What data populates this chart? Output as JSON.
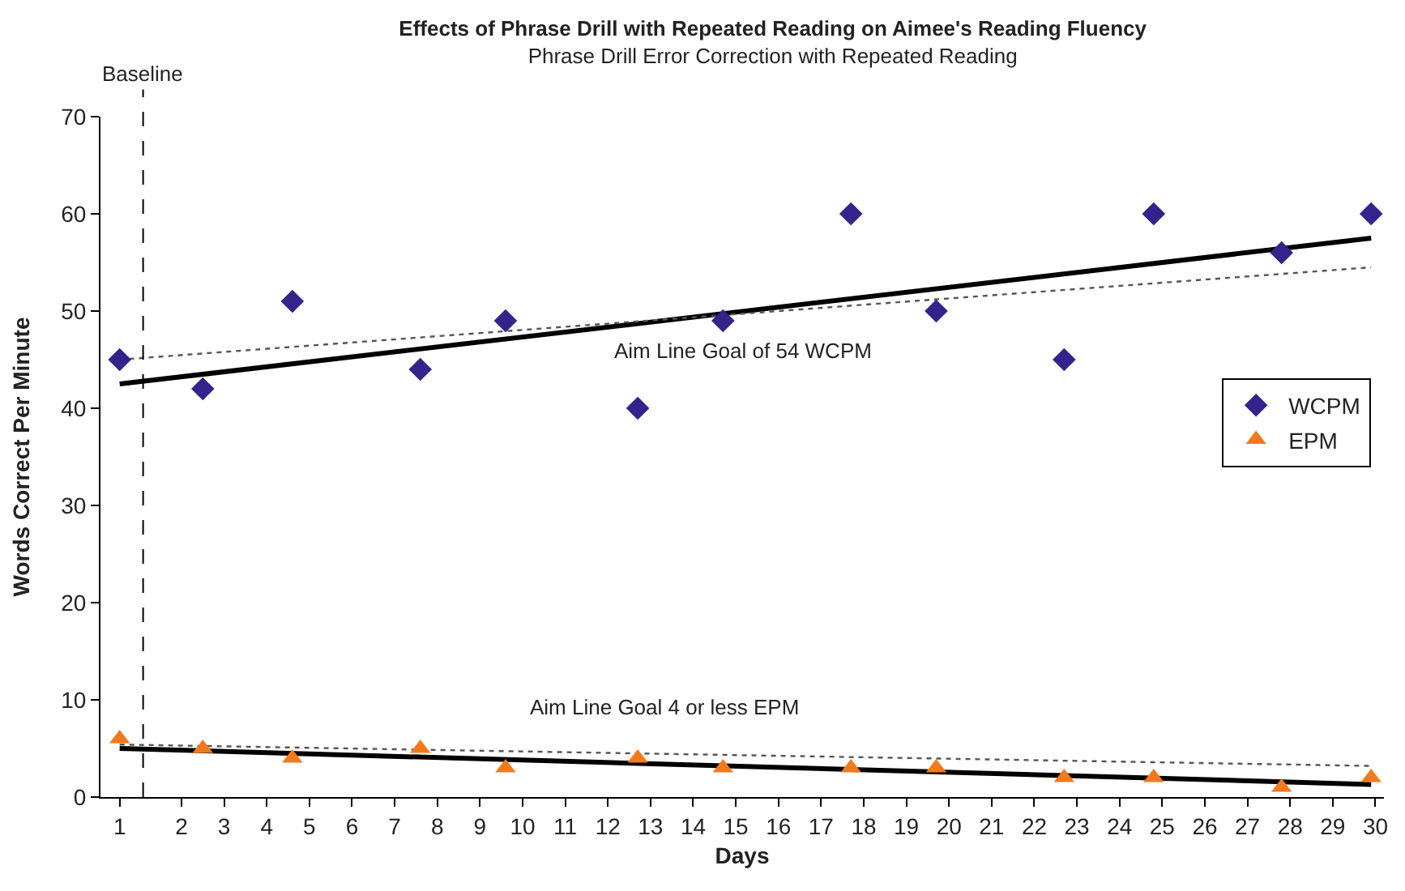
{
  "chart_data": {
    "type": "scatter",
    "title": "Effects of Phrase Drill with Repeated Reading on Aimee's Reading Fluency",
    "subtitle": "Phrase Drill Error Correction with Repeated Reading",
    "xlabel": "Days",
    "ylabel": "Words Correct Per Minute",
    "xlim": [
      0.1,
      30.2
    ],
    "ylim": [
      0,
      70
    ],
    "yticks": [
      0,
      10,
      20,
      30,
      40,
      50,
      60,
      70
    ],
    "xticks": [
      {
        "value": 0.55,
        "label": "1"
      },
      2,
      3,
      4,
      5,
      6,
      7,
      8,
      9,
      10,
      11,
      12,
      13,
      14,
      15,
      16,
      17,
      18,
      19,
      20,
      21,
      22,
      23,
      24,
      25,
      26,
      27,
      28,
      29,
      30
    ],
    "legend": "right",
    "series": [
      {
        "name": "WCPM",
        "color": "#33238a",
        "marker": "diamond",
        "x": [
          0.55,
          2.5,
          4.6,
          7.6,
          9.6,
          12.7,
          14.7,
          17.7,
          19.7,
          22.7,
          24.8,
          27.8,
          29.9
        ],
        "values": [
          45,
          42,
          51,
          44,
          49,
          40,
          49,
          60,
          50,
          45,
          60,
          56,
          60
        ]
      },
      {
        "name": "EPM",
        "color": "#f27a1e",
        "marker": "triangle",
        "x": [
          0.55,
          2.5,
          4.6,
          7.6,
          9.6,
          12.7,
          14.7,
          17.7,
          19.7,
          22.7,
          24.8,
          27.8,
          29.9
        ],
        "values": [
          6,
          5,
          4,
          5,
          3,
          4,
          3,
          3,
          3,
          2,
          2,
          1,
          2
        ]
      },
      {
        "type": "line",
        "color": "#000000",
        "line_style": "solid",
        "marker": "none",
        "x": [
          0.55,
          29.9
        ],
        "values": [
          42.5,
          57.5
        ]
      },
      {
        "type": "line",
        "color": "#555555",
        "line_style": "dotted",
        "marker": "none",
        "x": [
          0.55,
          29.9
        ],
        "values": [
          45,
          54.5
        ]
      },
      {
        "type": "line",
        "color": "#000000",
        "line_style": "solid",
        "marker": "none",
        "x": [
          0.55,
          29.9
        ],
        "values": [
          5,
          1.3
        ]
      },
      {
        "type": "line",
        "color": "#555555",
        "line_style": "dotted",
        "marker": "none",
        "x": [
          0.55,
          29.9
        ],
        "values": [
          5.4,
          3.2
        ]
      }
    ],
    "ref_lines": [
      {
        "axis": "x",
        "value": 1.1,
        "label": "Baseline",
        "color": "#000000",
        "line_style": "dashed"
      }
    ],
    "annotations": [
      "Aim Line Goal of 54 WCPM",
      "Aim Line Goal 4 or less EPM"
    ]
  }
}
